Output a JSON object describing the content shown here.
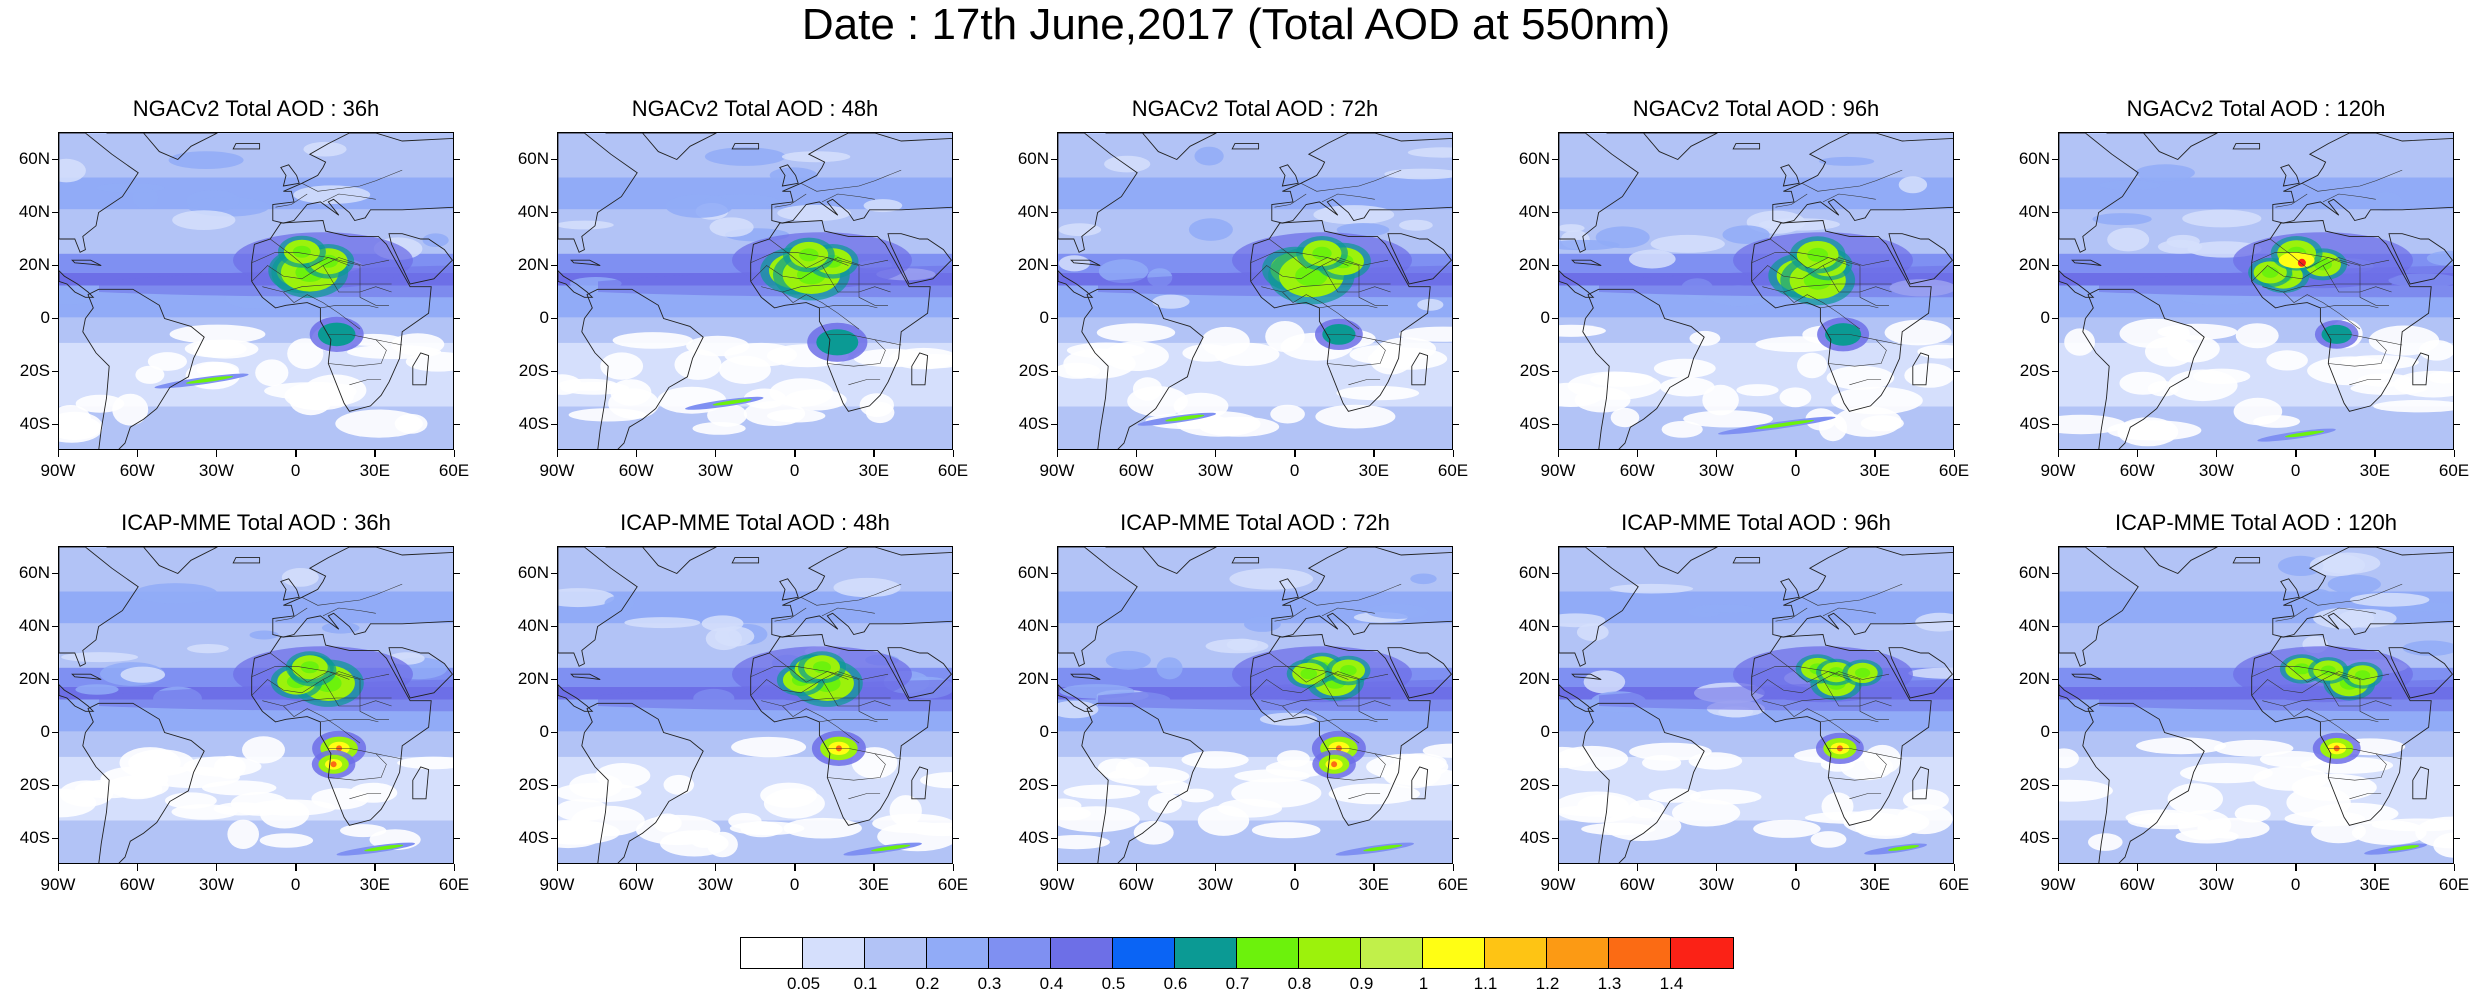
{
  "title": "Date : 17th June,2017 (Total AOD at 550nm)",
  "panels": [
    {
      "title": "NGACv2 Total AOD : 36h",
      "model": "NGACv2",
      "lead": "36h",
      "dust": [
        [
          0.4,
          0.32,
          0.2
        ],
        [
          0.42,
          0.35,
          0.25
        ],
        [
          0.28,
          0.42,
          0.12
        ],
        [
          0.16,
          0.32,
          0.1
        ]
      ],
      "smoke": [
        [
          0.64,
          0.02,
          0.15
        ]
      ],
      "plume": [
        [
          0.36,
          0.78,
          0.12
        ]
      ]
    },
    {
      "title": "NGACv2 Total AOD : 48h",
      "model": "NGACv2",
      "lead": "48h",
      "dust": [
        [
          0.4,
          0.3,
          0.22
        ],
        [
          0.45,
          0.36,
          0.25
        ],
        [
          0.28,
          0.44,
          0.12
        ],
        [
          0.2,
          0.35,
          0.12
        ]
      ],
      "smoke": [
        [
          0.66,
          0.05,
          0.18
        ]
      ],
      "plume": [
        [
          0.42,
          0.85,
          0.1
        ]
      ]
    },
    {
      "title": "NGACv2 Total AOD : 72h",
      "model": "NGACv2",
      "lead": "72h",
      "dust": [
        [
          0.38,
          0.3,
          0.2
        ],
        [
          0.46,
          0.36,
          0.3
        ],
        [
          0.28,
          0.48,
          0.14
        ],
        [
          0.18,
          0.4,
          0.12
        ]
      ],
      "smoke": [
        [
          0.68,
          0.02,
          0.12
        ]
      ],
      "plume": [
        [
          0.3,
          0.9,
          0.1
        ]
      ]
    },
    {
      "title": "NGACv2 Total AOD : 96h",
      "model": "NGACv2",
      "lead": "96h",
      "dust": [
        [
          0.46,
          0.32,
          0.2
        ],
        [
          0.52,
          0.38,
          0.24
        ],
        [
          0.32,
          0.42,
          0.1
        ],
        [
          0.2,
          0.38,
          0.14
        ]
      ],
      "smoke": [
        [
          0.72,
          0.02,
          0.14
        ]
      ],
      "plume": [
        [
          0.55,
          0.92,
          0.15
        ]
      ]
    },
    {
      "title": "NGACv2 Total AOD : 120h",
      "model": "NGACv2",
      "lead": "120h",
      "dust": [
        [
          0.46,
          0.25,
          0.12
        ],
        [
          0.42,
          0.2,
          0.08
        ],
        [
          0.32,
          0.4,
          0.1
        ],
        [
          0.18,
          0.3,
          0.12
        ]
      ],
      "smoke": [
        [
          0.64,
          0.02,
          0.1
        ]
      ],
      "plume": [
        [
          0.6,
          0.95,
          0.1
        ]
      ]
    },
    {
      "title": "ICAP-MME Total AOD : 36h",
      "model": "ICAP-MME",
      "lead": "36h",
      "dust": [
        [
          0.38,
          0.42,
          0.22
        ],
        [
          0.36,
          0.3,
          0.12
        ],
        [
          0.22,
          0.36,
          0.1
        ],
        [
          0.18,
          0.35,
          0.1
        ]
      ],
      "smoke": [
        [
          0.67,
          0.02,
          0.15
        ],
        [
          0.6,
          0.08,
          0.1
        ]
      ],
      "plume": [
        [
          0.8,
          0.95,
          0.1
        ]
      ]
    },
    {
      "title": "ICAP-MME Total AOD : 48h",
      "model": "ICAP-MME",
      "lead": "48h",
      "dust": [
        [
          0.38,
          0.42,
          0.22
        ],
        [
          0.34,
          0.32,
          0.1
        ],
        [
          0.2,
          0.36,
          0.08
        ],
        [
          0.18,
          0.4,
          0.1
        ]
      ],
      "smoke": [
        [
          0.68,
          0.02,
          0.15
        ]
      ],
      "plume": [
        [
          0.82,
          0.95,
          0.1
        ]
      ]
    },
    {
      "title": "ICAP-MME Total AOD : 72h",
      "model": "ICAP-MME",
      "lead": "72h",
      "dust": [
        [
          0.36,
          0.45,
          0.15
        ],
        [
          0.18,
          0.4,
          0.08
        ],
        [
          0.26,
          0.35,
          0.08
        ],
        [
          0.22,
          0.5,
          0.08
        ]
      ],
      "smoke": [
        [
          0.68,
          0.02,
          0.15
        ],
        [
          0.62,
          0.08,
          0.1
        ]
      ],
      "plume": [
        [
          0.8,
          0.95,
          0.1
        ]
      ]
    },
    {
      "title": "ICAP-MME Total AOD : 96h",
      "model": "ICAP-MME",
      "lead": "96h",
      "dust": [
        [
          0.38,
          0.45,
          0.12
        ],
        [
          0.2,
          0.38,
          0.08
        ],
        [
          0.24,
          0.45,
          0.06
        ],
        [
          0.25,
          0.55,
          0.06
        ]
      ],
      "smoke": [
        [
          0.68,
          0.02,
          0.12
        ]
      ],
      "plume": [
        [
          0.85,
          0.95,
          0.08
        ]
      ]
    },
    {
      "title": "ICAP-MME Total AOD : 120h",
      "model": "ICAP-MME",
      "lead": "120h",
      "dust": [
        [
          0.38,
          0.5,
          0.12
        ],
        [
          0.2,
          0.32,
          0.08
        ],
        [
          0.28,
          0.55,
          0.06
        ],
        [
          0.22,
          0.42,
          0.06
        ]
      ],
      "smoke": [
        [
          0.64,
          0.02,
          0.12
        ]
      ],
      "plume": [
        [
          0.85,
          0.95,
          0.08
        ]
      ]
    }
  ],
  "y_labels": [
    "60N",
    "40N",
    "20N",
    "0",
    "20S",
    "40S"
  ],
  "x_labels": [
    "90W",
    "60W",
    "30W",
    "0",
    "30E",
    "60E"
  ],
  "lat_range": [
    -50,
    70
  ],
  "lon_range": [
    -90,
    60
  ],
  "legend": {
    "colors": [
      "#ffffff",
      "#d5dffc",
      "#b2c3f6",
      "#91abf7",
      "#7f90f2",
      "#6d6fe7",
      "#0a64f5",
      "#0b9a94",
      "#6cf20c",
      "#9cf20c",
      "#c1f04a",
      "#fffe14",
      "#fec414",
      "#fc9a14",
      "#fb6b14",
      "#fb2216"
    ],
    "labels": [
      "0.05",
      "0.1",
      "0.2",
      "0.3",
      "0.4",
      "0.5",
      "0.6",
      "0.7",
      "0.8",
      "0.9",
      "1",
      "1.1",
      "1.2",
      "1.3",
      "1.4"
    ]
  }
}
